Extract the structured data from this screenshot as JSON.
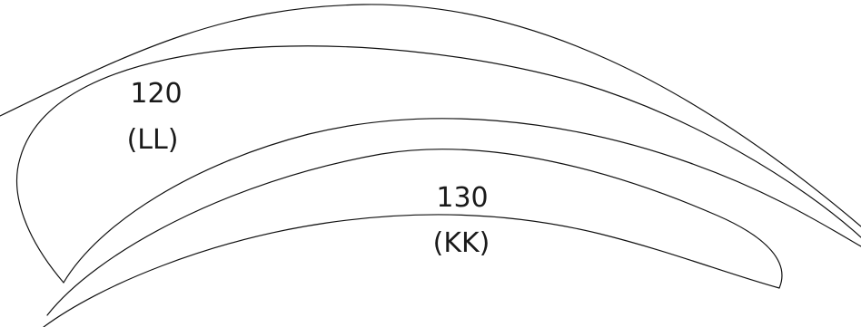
{
  "labels": {
    "region_120": {
      "number": "120",
      "code": "(LL)"
    },
    "region_130": {
      "number": "130",
      "code": "(KK)"
    }
  }
}
